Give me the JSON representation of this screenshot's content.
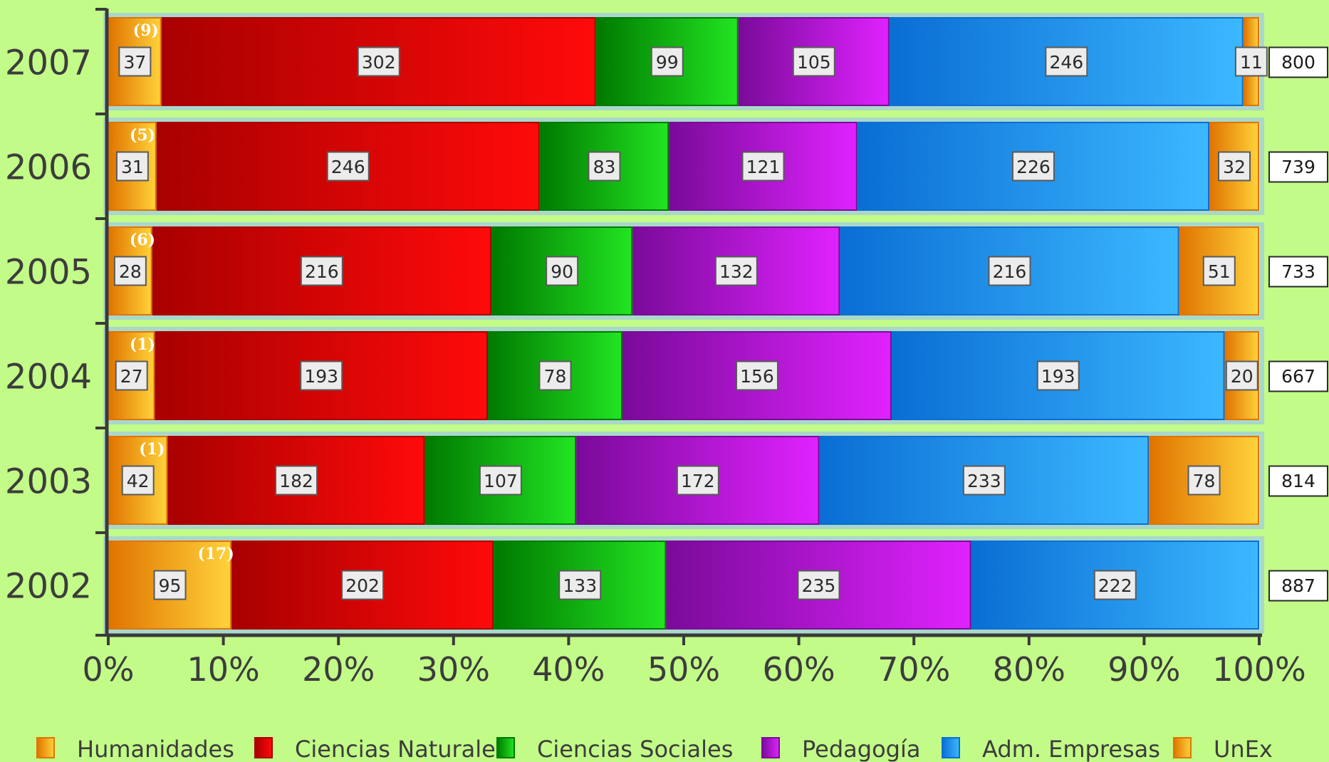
{
  "chart_data": {
    "type": "bar",
    "stacked": true,
    "normalized": true,
    "orientation": "horizontal",
    "categories": [
      "2007",
      "2006",
      "2005",
      "2004",
      "2003",
      "2002"
    ],
    "series": [
      {
        "name": "Humanidades",
        "values": [
          37,
          31,
          28,
          27,
          42,
          95
        ],
        "colors": [
          "#e07400",
          "#ffd23a"
        ]
      },
      {
        "name": "Ciencias Naturales",
        "values": [
          302,
          246,
          216,
          193,
          182,
          202
        ],
        "colors": [
          "#a80000",
          "#ff0a0a"
        ]
      },
      {
        "name": "Ciencias Sociales",
        "values": [
          99,
          83,
          90,
          78,
          107,
          133
        ],
        "colors": [
          "#007a00",
          "#22e422"
        ]
      },
      {
        "name": "Pedagogía",
        "values": [
          105,
          121,
          132,
          156,
          172,
          235
        ],
        "colors": [
          "#7a0a9a",
          "#e022ff"
        ]
      },
      {
        "name": "Adm. Empresas",
        "values": [
          246,
          226,
          216,
          193,
          233,
          222
        ],
        "colors": [
          "#0a6ed4",
          "#3cb8ff"
        ]
      },
      {
        "name": "UnEx",
        "values": [
          11,
          32,
          51,
          20,
          78,
          0
        ],
        "colors": [
          "#e07400",
          "#ffd23a"
        ]
      }
    ],
    "annotations": [
      "(9)",
      "(5)",
      "(6)",
      "(1)",
      "(1)",
      "(17)"
    ],
    "totals": [
      "800",
      "739",
      "733",
      "667",
      "814",
      "887"
    ],
    "xticks": [
      "0%",
      "10%",
      "20%",
      "30%",
      "40%",
      "50%",
      "60%",
      "70%",
      "80%",
      "90%",
      "100%"
    ],
    "xlim": [
      0,
      100
    ],
    "legend_position": "bottom",
    "colors": {
      "background": "#c2fb88",
      "axis": "#3a3a3a",
      "text": "#3c3c3c"
    }
  }
}
